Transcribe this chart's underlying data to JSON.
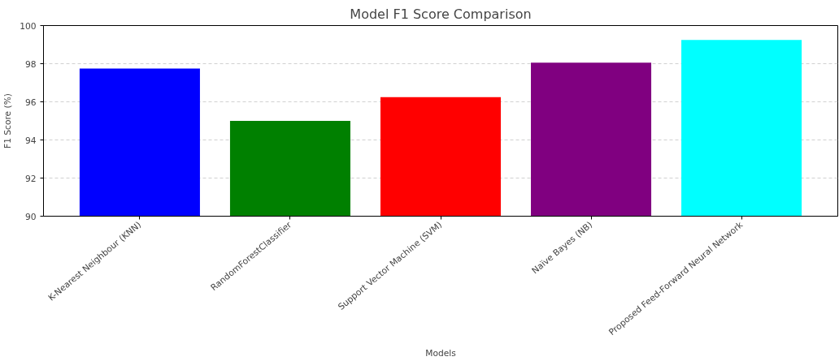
{
  "chart_data": {
    "type": "bar",
    "title": "Model F1 Score Comparison",
    "xlabel": "Models",
    "ylabel": "F1 Score (%)",
    "categories": [
      "K-Nearest Neighbour (KNN)",
      "RandomForestClassifier",
      "Support Vector Machine (SVM)",
      "Naïve Bayes (NB)",
      "Proposed Feed-Forward Neural Network"
    ],
    "values": [
      97.75,
      95.0,
      96.25,
      98.05,
      99.25
    ],
    "colors": [
      "#0000ff",
      "#008000",
      "#ff0000",
      "#800080",
      "#00ffff"
    ],
    "ylim": [
      90,
      100
    ],
    "yticks": [
      90,
      92,
      94,
      96,
      98,
      100
    ],
    "grid": "y"
  }
}
